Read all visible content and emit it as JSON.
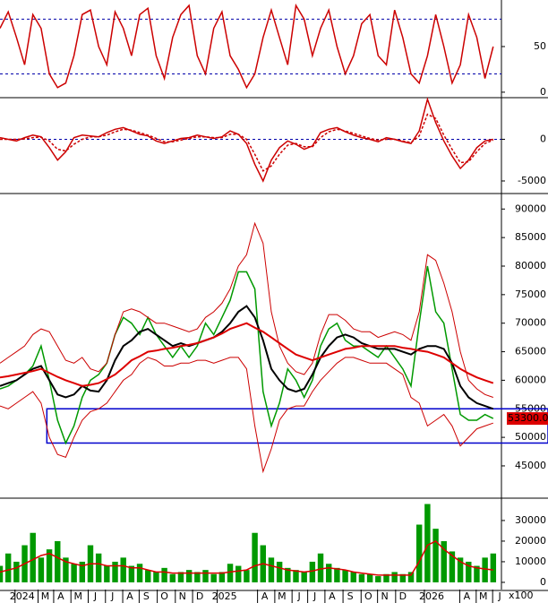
{
  "chart_data": [
    {
      "type": "line",
      "ylim": [
        -5,
        101
      ],
      "yticks": [
        0,
        50
      ],
      "reference_lines": [
        20,
        80
      ],
      "xlim": [
        0,
        61
      ],
      "series": [
        {
          "color": "#cc0000",
          "values": [
            70,
            88,
            60,
            30,
            85,
            70,
            20,
            5,
            10,
            40,
            85,
            90,
            50,
            30,
            88,
            70,
            40,
            85,
            92,
            40,
            15,
            60,
            85,
            95,
            40,
            20,
            70,
            88,
            40,
            25,
            5,
            20,
            60,
            90,
            60,
            30,
            95,
            80,
            40,
            70,
            90,
            50,
            20,
            40,
            75,
            85,
            40,
            30,
            90,
            60,
            20,
            10,
            40,
            85,
            50,
            10,
            30,
            85,
            60,
            15,
            50
          ]
        }
      ]
    },
    {
      "type": "line",
      "ylim": [
        -6400,
        4670
      ],
      "yticks": [
        -5000,
        0
      ],
      "reference_lines": [
        0
      ],
      "xlim": [
        0,
        61
      ],
      "series": [
        {
          "color": "#cc0000",
          "values": [
            200,
            0,
            -200,
            200,
            500,
            300,
            -1000,
            -2500,
            -1500,
            200,
            500,
            400,
            300,
            800,
            1200,
            1400,
            1000,
            600,
            400,
            -200,
            -500,
            -200,
            100,
            200,
            500,
            300,
            100,
            300,
            1000,
            600,
            -500,
            -3000,
            -5000,
            -2500,
            -1000,
            -200,
            -600,
            -1200,
            -800,
            800,
            1200,
            1400,
            900,
            500,
            200,
            0,
            -300,
            200,
            0,
            -300,
            -500,
            1000,
            4800,
            2000,
            -200,
            -2000,
            -3500,
            -2500,
            -1000,
            -200,
            0
          ]
        },
        {
          "color": "#cc0000",
          "dashed": true,
          "values": [
            0,
            0,
            0,
            50,
            200,
            250,
            -200,
            -1200,
            -1400,
            -600,
            0,
            300,
            300,
            500,
            900,
            1200,
            1100,
            800,
            500,
            100,
            -300,
            -300,
            -100,
            100,
            300,
            300,
            200,
            200,
            600,
            600,
            0,
            -1800,
            -3800,
            -3200,
            -1800,
            -700,
            -500,
            -900,
            -900,
            200,
            900,
            1200,
            1000,
            700,
            400,
            100,
            -100,
            0,
            0,
            -200,
            -400,
            400,
            3000,
            2500,
            500,
            -1200,
            -2800,
            -2700,
            -1500,
            -500,
            -100
          ]
        }
      ]
    },
    {
      "type": "line",
      "ylim": [
        39500,
        92400
      ],
      "yticks": [
        45000,
        50000,
        55000,
        60000,
        65000,
        70000,
        75000,
        80000,
        85000,
        90000
      ],
      "xlim": [
        0,
        61
      ],
      "highlight_band": {
        "xstart": 5.7,
        "ylim": [
          49000,
          55000
        ],
        "color": "#0000cc"
      },
      "current_price": {
        "value": 53300,
        "label": "53300.00"
      },
      "series": [
        {
          "color": "#009900",
          "values": [
            58500,
            59000,
            60000,
            61000,
            62500,
            66000,
            60000,
            53000,
            49000,
            52000,
            57000,
            60000,
            61000,
            63000,
            68000,
            71000,
            70000,
            68000,
            71000,
            68000,
            66000,
            64000,
            66000,
            64000,
            66000,
            70000,
            68000,
            71000,
            74000,
            79000,
            79000,
            76000,
            58000,
            52000,
            56000,
            62000,
            60000,
            57000,
            60000,
            66000,
            69000,
            70000,
            67000,
            66000,
            66000,
            65000,
            64000,
            66000,
            64000,
            62000,
            59000,
            70000,
            80000,
            72000,
            70000,
            62000,
            54000,
            53000,
            53000,
            54000,
            53300
          ]
        },
        {
          "color": "#000000",
          "width": 2,
          "values": [
            59000,
            59500,
            60000,
            61000,
            62000,
            62500,
            60000,
            57500,
            57000,
            57500,
            59000,
            58200,
            58000,
            60000,
            63500,
            66000,
            67000,
            68500,
            69000,
            68000,
            67000,
            66000,
            66500,
            66000,
            66500,
            67000,
            67500,
            68500,
            70000,
            72000,
            73000,
            71000,
            67000,
            62000,
            60000,
            58500,
            58000,
            58500,
            61000,
            64000,
            66000,
            67500,
            68000,
            67500,
            66500,
            66000,
            65500,
            65500,
            65500,
            65000,
            64500,
            65500,
            66000,
            66000,
            65500,
            63000,
            59000,
            57000,
            56000,
            55500,
            55000
          ]
        },
        {
          "color": "#dd0000",
          "width": 2,
          "values": [
            60500,
            60700,
            61000,
            61300,
            61600,
            62000,
            61300,
            60600,
            60000,
            59500,
            59000,
            59200,
            59500,
            60200,
            61000,
            62200,
            63500,
            64200,
            65000,
            65200,
            65500,
            65700,
            66000,
            66200,
            66500,
            67000,
            67500,
            68200,
            69000,
            69500,
            70000,
            69200,
            68500,
            67500,
            66500,
            65500,
            64500,
            64000,
            63500,
            64000,
            64500,
            65000,
            65500,
            65700,
            66000,
            66000,
            66000,
            66000,
            66000,
            65700,
            65500,
            65200,
            65000,
            64500,
            64000,
            63000,
            62000,
            61200,
            60500,
            60000,
            59500
          ]
        },
        {
          "color": "#cc0000",
          "width": 1,
          "values": [
            63000,
            64000,
            65000,
            66000,
            68000,
            69000,
            68500,
            66000,
            63500,
            63000,
            64000,
            62000,
            61500,
            63000,
            68000,
            72000,
            72500,
            72000,
            71000,
            70000,
            70000,
            69500,
            69000,
            68500,
            69000,
            71000,
            72000,
            73500,
            76000,
            80000,
            82000,
            87500,
            84000,
            72000,
            66000,
            63000,
            61500,
            61000,
            63000,
            68000,
            71500,
            71500,
            70500,
            69000,
            68500,
            68500,
            67500,
            68000,
            68500,
            68000,
            67000,
            72000,
            82000,
            81000,
            77000,
            72000,
            65000,
            60000,
            58500,
            57500,
            57000
          ]
        },
        {
          "color": "#cc0000",
          "width": 1,
          "values": [
            55500,
            55000,
            56000,
            57000,
            58000,
            56000,
            50000,
            47000,
            46500,
            50000,
            53000,
            54500,
            55000,
            56000,
            58000,
            60000,
            61000,
            63000,
            64000,
            63500,
            62500,
            62500,
            63000,
            63000,
            63500,
            63500,
            63000,
            63500,
            64000,
            64000,
            62000,
            52000,
            44000,
            48000,
            53000,
            55000,
            55500,
            55500,
            58000,
            60000,
            61500,
            63000,
            64000,
            64000,
            63500,
            63000,
            63000,
            63000,
            62000,
            61000,
            57000,
            56000,
            52000,
            53000,
            54000,
            52000,
            48500,
            50000,
            51500,
            52000,
            52500
          ]
        }
      ]
    },
    {
      "type": "bar",
      "ylim": [
        -3500,
        40400
      ],
      "yticks": [
        0,
        10000,
        20000,
        30000
      ],
      "unit_label": "x100",
      "xlim": [
        0,
        61
      ],
      "xticks": [
        {
          "value": 2.7,
          "label": "2024"
        },
        {
          "value": 5.5,
          "label": "M"
        },
        {
          "value": 7.4,
          "label": "A"
        },
        {
          "value": 9.5,
          "label": "M"
        },
        {
          "value": 11.6,
          "label": "J"
        },
        {
          "value": 13.7,
          "label": "J"
        },
        {
          "value": 15.8,
          "label": "A"
        },
        {
          "value": 17.8,
          "label": "S"
        },
        {
          "value": 20,
          "label": "O"
        },
        {
          "value": 22.2,
          "label": "N"
        },
        {
          "value": 24.3,
          "label": "D"
        },
        {
          "value": 27.3,
          "label": "2025"
        },
        {
          "value": 32.2,
          "label": "A"
        },
        {
          "value": 34.3,
          "label": "M"
        },
        {
          "value": 36.4,
          "label": "J"
        },
        {
          "value": 38.3,
          "label": "J"
        },
        {
          "value": 40.4,
          "label": "A"
        },
        {
          "value": 42.6,
          "label": "S"
        },
        {
          "value": 44.8,
          "label": "O"
        },
        {
          "value": 46.8,
          "label": "N"
        },
        {
          "value": 49,
          "label": "D"
        },
        {
          "value": 52.5,
          "label": "2026"
        },
        {
          "value": 56.8,
          "label": "A"
        },
        {
          "value": 58.8,
          "label": "M"
        },
        {
          "value": 60.8,
          "label": "J"
        }
      ],
      "series": [
        {
          "color": "#009900",
          "kind": "bar",
          "values": [
            8000,
            14000,
            10000,
            18000,
            24000,
            12000,
            16000,
            20000,
            12000,
            9000,
            10000,
            18000,
            14000,
            8000,
            10000,
            12000,
            8000,
            9000,
            6000,
            5000,
            7000,
            4000,
            5000,
            6000,
            5000,
            6000,
            4000,
            5000,
            9000,
            8000,
            6000,
            24000,
            18000,
            12000,
            10000,
            7000,
            6000,
            5000,
            10000,
            14000,
            9000,
            7000,
            6000,
            5000,
            4000,
            4000,
            3000,
            4000,
            5000,
            4000,
            5000,
            28000,
            38000,
            26000,
            20000,
            15000,
            12000,
            10000,
            8000,
            12000,
            14000
          ]
        },
        {
          "color": "#dd0000",
          "kind": "line",
          "values": [
            5000,
            6000,
            7000,
            9000,
            11000,
            13000,
            14000,
            12000,
            10000,
            9000,
            8000,
            9000,
            9000,
            8000,
            8000,
            8000,
            7000,
            7000,
            6000,
            5000,
            5000,
            4500,
            4500,
            4500,
            4500,
            4500,
            4500,
            4500,
            5000,
            5500,
            6000,
            8000,
            9000,
            8000,
            7000,
            6000,
            5500,
            5000,
            5500,
            6500,
            7000,
            6500,
            6000,
            5000,
            4500,
            4000,
            3500,
            3500,
            3500,
            3500,
            3500,
            10000,
            18000,
            20000,
            16000,
            13000,
            10000,
            8000,
            7000,
            6500,
            6000
          ]
        }
      ]
    }
  ]
}
